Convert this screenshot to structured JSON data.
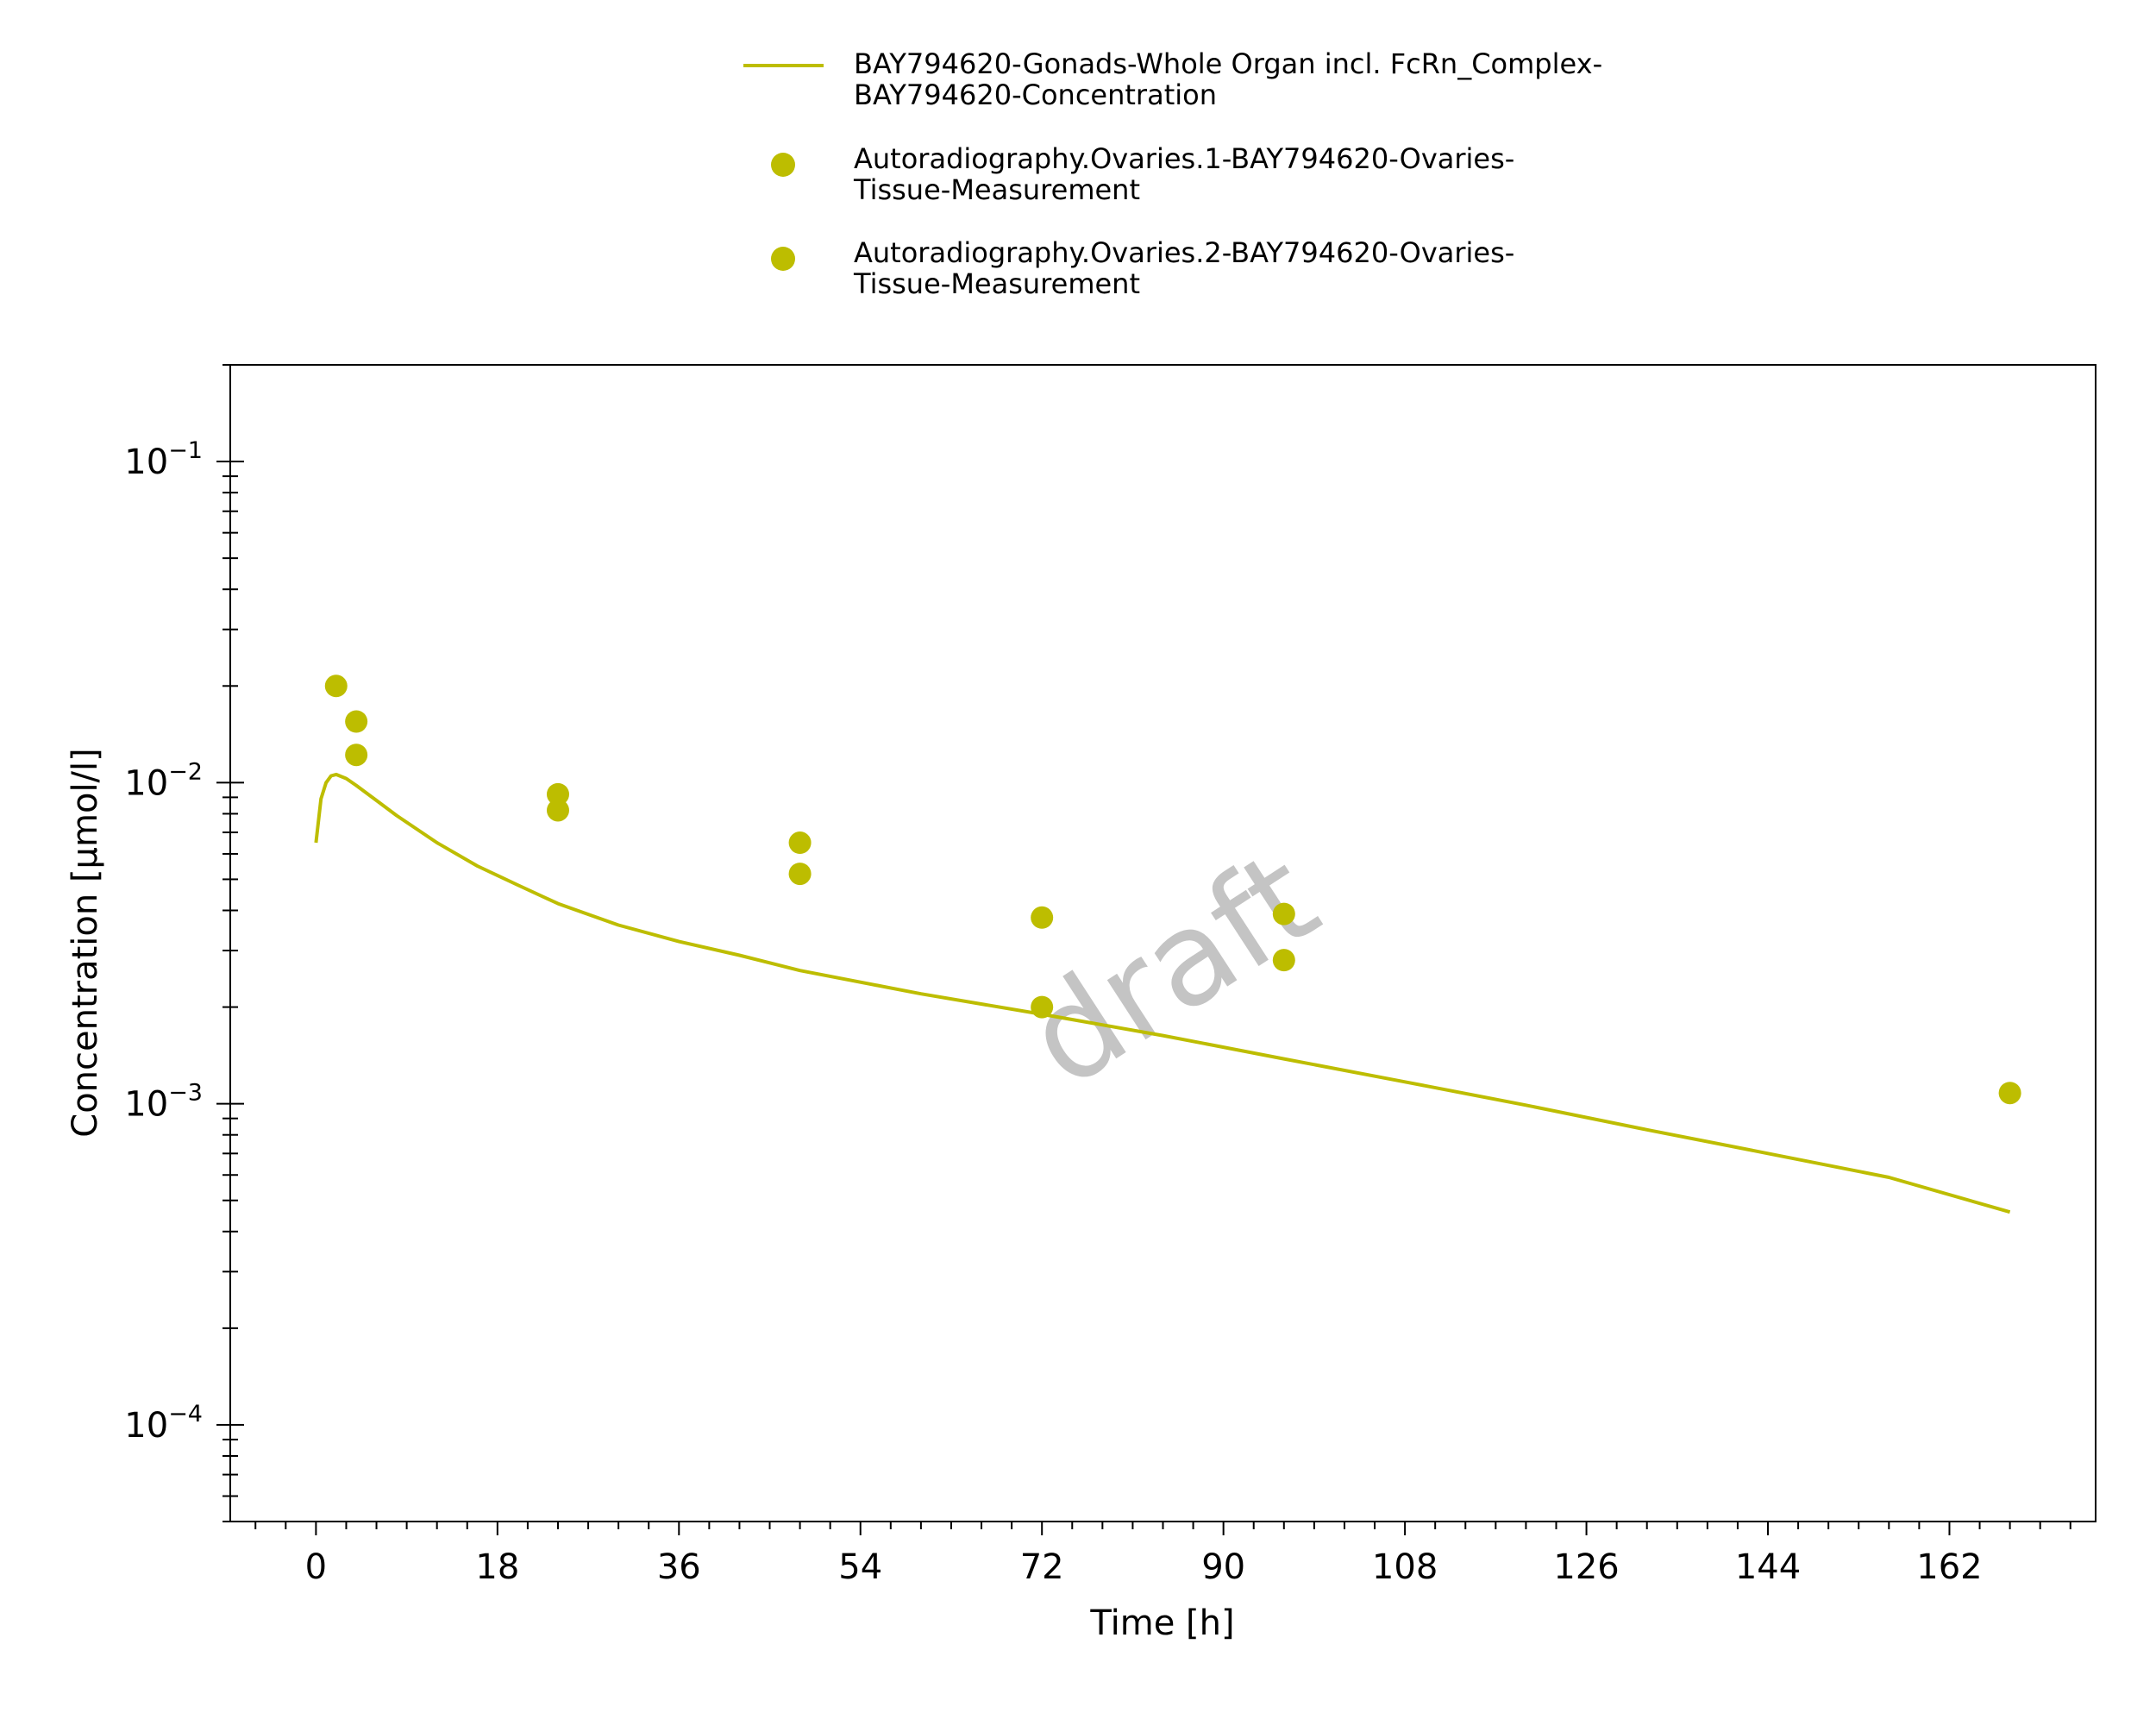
{
  "chart_data": {
    "type": "line",
    "xlabel": "Time [h]",
    "ylabel": "Concentration [µmol/l]",
    "xlim": [
      -8.5,
      176.5
    ],
    "ylim": [
      5e-05,
      0.2
    ],
    "y_scale": "log",
    "x_ticks": [
      0,
      18,
      36,
      54,
      72,
      90,
      108,
      126,
      144,
      162
    ],
    "x_tick_labels": [
      "0",
      "18",
      "36",
      "54",
      "72",
      "90",
      "108",
      "126",
      "144",
      "162"
    ],
    "y_ticks": [
      0.1,
      0.01,
      0.001,
      0.0001
    ],
    "y_tick_labels": [
      {
        "base": "10",
        "exp": "−1"
      },
      {
        "base": "10",
        "exp": "−2"
      },
      {
        "base": "10",
        "exp": "−3"
      },
      {
        "base": "10",
        "exp": "−4"
      }
    ],
    "grid": false,
    "legend_position": "top",
    "watermark": "draft",
    "series": [
      {
        "name": "BAY794620-Gonads-Whole Organ incl. FcRn_Complex-BAY794620-Concentration",
        "legend_lines": [
          "BAY794620-Gonads-Whole Organ incl. FcRn_Complex-",
          "BAY794620-Concentration"
        ],
        "kind": "line",
        "color": "#bdbd00",
        "x": [
          0,
          0.5,
          1,
          1.5,
          2,
          3,
          4,
          6,
          8,
          12,
          16,
          20,
          24,
          30,
          36,
          42,
          48,
          60,
          72,
          84,
          96,
          108,
          120,
          132,
          144,
          156,
          168
        ],
        "y": [
          0.0065,
          0.0089,
          0.01,
          0.0105,
          0.0106,
          0.0103,
          0.0098,
          0.0088,
          0.0079,
          0.0065,
          0.0055,
          0.0048,
          0.0042,
          0.0036,
          0.0032,
          0.0029,
          0.0026,
          0.0022,
          0.0019,
          0.00163,
          0.00138,
          0.00117,
          0.00099,
          0.00083,
          0.0007,
          0.00059,
          0.00046
        ]
      },
      {
        "name": "Autoradiography.Ovaries.1-BAY794620-Ovaries-Tissue-Measurement",
        "legend_lines": [
          "Autoradiography.Ovaries.1-BAY794620-Ovaries-",
          "Tissue-Measurement"
        ],
        "kind": "scatter",
        "color": "#bdbd00",
        "x": [
          2,
          4,
          24,
          48,
          72,
          96,
          168
        ],
        "y": [
          0.02,
          0.0155,
          0.0092,
          0.0065,
          0.0038,
          0.0039,
          0.00108
        ]
      },
      {
        "name": "Autoradiography.Ovaries.2-BAY794620-Ovaries-Tissue-Measurement",
        "legend_lines": [
          "Autoradiography.Ovaries.2-BAY794620-Ovaries-",
          "Tissue-Measurement"
        ],
        "kind": "scatter",
        "color": "#bdbd00",
        "x": [
          4,
          24,
          48,
          72,
          96
        ],
        "y": [
          0.0122,
          0.0082,
          0.0052,
          0.002,
          0.0028
        ]
      }
    ]
  }
}
